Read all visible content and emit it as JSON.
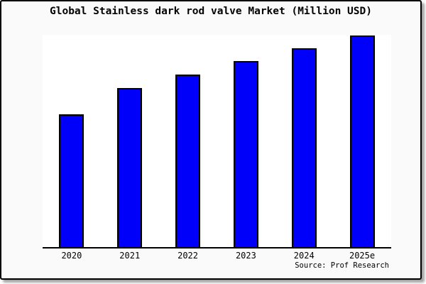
{
  "card": {
    "background": "#fafafa",
    "border_color": "#000000",
    "plot_background": "#ffffff"
  },
  "chart_data": {
    "type": "bar",
    "title": "Global Stainless dark rod valve Market (Million USD)",
    "categories": [
      "2020",
      "2021",
      "2022",
      "2023",
      "2024",
      "2025e"
    ],
    "values": [
      62.5,
      74.9,
      81.3,
      87.6,
      93.6,
      99.7
    ],
    "xlabel": "",
    "ylabel": "",
    "ylim": [
      0,
      100
    ],
    "grid": false,
    "legend": "none",
    "y_axis_labels_visible": false,
    "bar_color": "#0000fa",
    "bar_border_color": "#000000",
    "source_label": "Source: Prof Research"
  }
}
